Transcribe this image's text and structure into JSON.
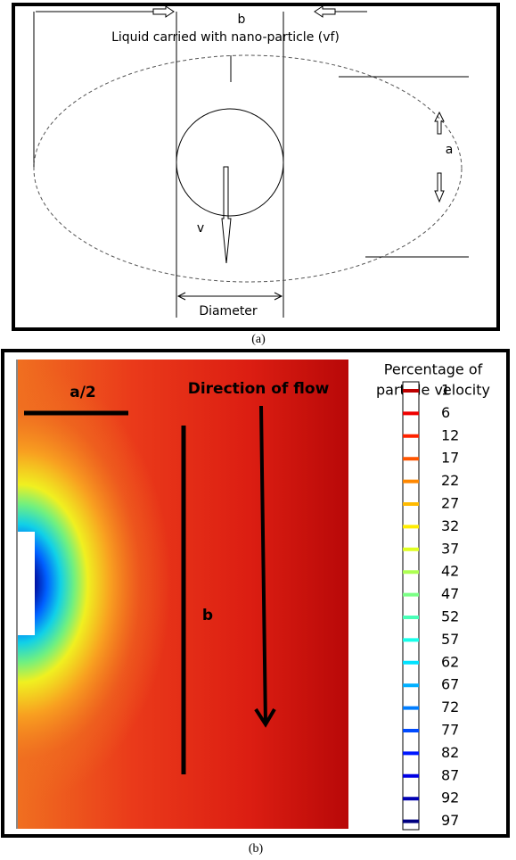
{
  "panel_a": {
    "labels": {
      "b": "b",
      "liquid": "Liquid carried with nano-particle (vf)",
      "a": "a",
      "v": "v",
      "diameter": "Diameter"
    },
    "caption": "(a)"
  },
  "panel_b": {
    "labels": {
      "half_a": "a/2",
      "direction": "Direction of flow",
      "b": "b"
    },
    "legend": {
      "title": [
        "Percentage of",
        "particle velocity"
      ],
      "ticks": [
        1,
        6,
        12,
        17,
        22,
        27,
        32,
        37,
        42,
        47,
        52,
        57,
        62,
        67,
        72,
        77,
        82,
        87,
        92,
        97
      ]
    },
    "caption": "(b)"
  }
}
